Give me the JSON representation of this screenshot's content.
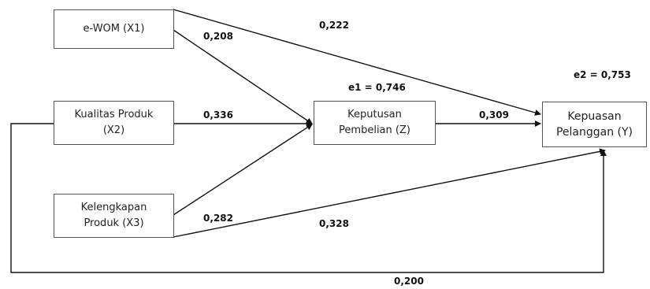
{
  "nodes": {
    "x1": {
      "label": "e-WOM (X1)"
    },
    "x2": {
      "label": "Kualitas Produk\n(X2)"
    },
    "x3": {
      "label": "Kelengkapan\nProduk (X3)"
    },
    "z": {
      "label": "Keputusan\nPembelian (Z)"
    },
    "y": {
      "label": "Kepuasan\nPelanggan (Y)"
    }
  },
  "errors": {
    "e1": "e1 = 0,746",
    "e2": "e2 = 0,753"
  },
  "paths": {
    "x1_z": "0,208",
    "x1_y": "0,222",
    "x2_z": "0,336",
    "x2_y": "0,200",
    "x3_z": "0,282",
    "x3_y": "0,328",
    "z_y": "0,309"
  },
  "colors": {
    "line": "#111111",
    "box_border": "#555555"
  }
}
